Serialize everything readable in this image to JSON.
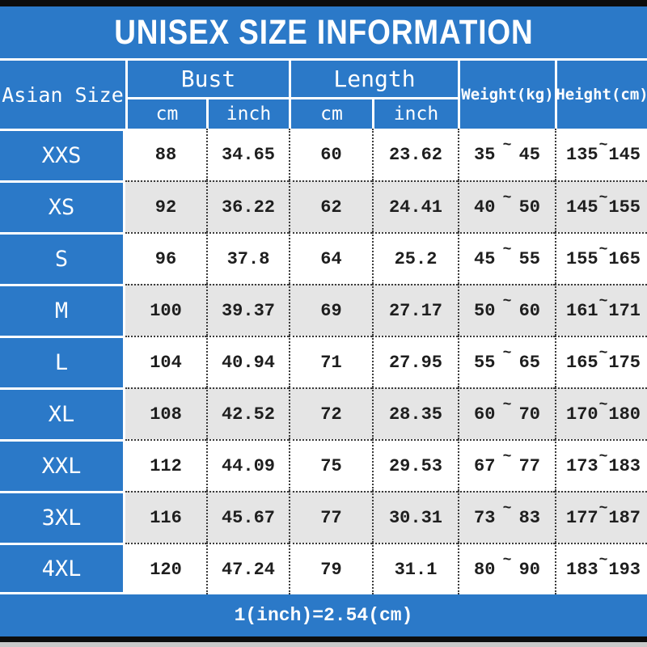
{
  "title": "UNISEX SIZE INFORMATION",
  "colors": {
    "primary_blue": "#2b79c8",
    "row_alt_gray": "#e5e5e5",
    "row_white": "#ffffff",
    "text_dark": "#1e1e1e",
    "bar_black": "#0c0c0c"
  },
  "header": {
    "asian_size": "Asian Size",
    "bust": "Bust",
    "length": "Length",
    "weight": "Weight(kg)",
    "height": "Height(cm)",
    "unit_cm": "cm",
    "unit_inch": "inch"
  },
  "symbols": {
    "range_tilde": "~"
  },
  "table": {
    "rows": [
      {
        "size": "XXS",
        "bust_cm": "88",
        "bust_inch": "34.65",
        "length_cm": "60",
        "length_inch": "23.62",
        "weight_min": "35",
        "weight_max": "45",
        "height_min": "135",
        "height_max": "145"
      },
      {
        "size": "XS",
        "bust_cm": "92",
        "bust_inch": "36.22",
        "length_cm": "62",
        "length_inch": "24.41",
        "weight_min": "40",
        "weight_max": "50",
        "height_min": "145",
        "height_max": "155"
      },
      {
        "size": "S",
        "bust_cm": "96",
        "bust_inch": "37.8",
        "length_cm": "64",
        "length_inch": "25.2",
        "weight_min": "45",
        "weight_max": "55",
        "height_min": "155",
        "height_max": "165"
      },
      {
        "size": "M",
        "bust_cm": "100",
        "bust_inch": "39.37",
        "length_cm": "69",
        "length_inch": "27.17",
        "weight_min": "50",
        "weight_max": "60",
        "height_min": "161",
        "height_max": "171"
      },
      {
        "size": "L",
        "bust_cm": "104",
        "bust_inch": "40.94",
        "length_cm": "71",
        "length_inch": "27.95",
        "weight_min": "55",
        "weight_max": "65",
        "height_min": "165",
        "height_max": "175"
      },
      {
        "size": "XL",
        "bust_cm": "108",
        "bust_inch": "42.52",
        "length_cm": "72",
        "length_inch": "28.35",
        "weight_min": "60",
        "weight_max": "70",
        "height_min": "170",
        "height_max": "180"
      },
      {
        "size": "XXL",
        "bust_cm": "112",
        "bust_inch": "44.09",
        "length_cm": "75",
        "length_inch": "29.53",
        "weight_min": "67",
        "weight_max": "77",
        "height_min": "173",
        "height_max": "183"
      },
      {
        "size": "3XL",
        "bust_cm": "116",
        "bust_inch": "45.67",
        "length_cm": "77",
        "length_inch": "30.31",
        "weight_min": "73",
        "weight_max": "83",
        "height_min": "177",
        "height_max": "187"
      },
      {
        "size": "4XL",
        "bust_cm": "120",
        "bust_inch": "47.24",
        "length_cm": "79",
        "length_inch": "31.1",
        "weight_min": "80",
        "weight_max": "90",
        "height_min": "183",
        "height_max": "193"
      }
    ]
  },
  "footer": {
    "note": "1(inch)=2.54(cm)"
  },
  "chart_data": {
    "type": "table",
    "title": "UNISEX SIZE INFORMATION",
    "columns": [
      "Asian Size",
      "Bust cm",
      "Bust inch",
      "Length cm",
      "Length inch",
      "Weight(kg)",
      "Height(cm)"
    ],
    "rows": [
      [
        "XXS",
        "88",
        "34.65",
        "60",
        "23.62",
        "35 ~ 45",
        "135 ~ 145"
      ],
      [
        "XS",
        "92",
        "36.22",
        "62",
        "24.41",
        "40 ~ 50",
        "145 ~ 155"
      ],
      [
        "S",
        "96",
        "37.8",
        "64",
        "25.2",
        "45 ~ 55",
        "155 ~ 165"
      ],
      [
        "M",
        "100",
        "39.37",
        "69",
        "27.17",
        "50 ~ 60",
        "161 ~ 171"
      ],
      [
        "L",
        "104",
        "40.94",
        "71",
        "27.95",
        "55 ~ 65",
        "165 ~ 175"
      ],
      [
        "XL",
        "108",
        "42.52",
        "72",
        "28.35",
        "60 ~ 70",
        "170 ~ 180"
      ],
      [
        "XXL",
        "112",
        "44.09",
        "75",
        "29.53",
        "67 ~ 77",
        "173 ~ 183"
      ],
      [
        "3XL",
        "116",
        "45.67",
        "77",
        "30.31",
        "73 ~ 83",
        "177 ~ 187"
      ],
      [
        "4XL",
        "120",
        "47.24",
        "79",
        "31.1",
        "80 ~ 90",
        "183 ~ 193"
      ]
    ],
    "footnote": "1(inch)=2.54(cm)"
  }
}
